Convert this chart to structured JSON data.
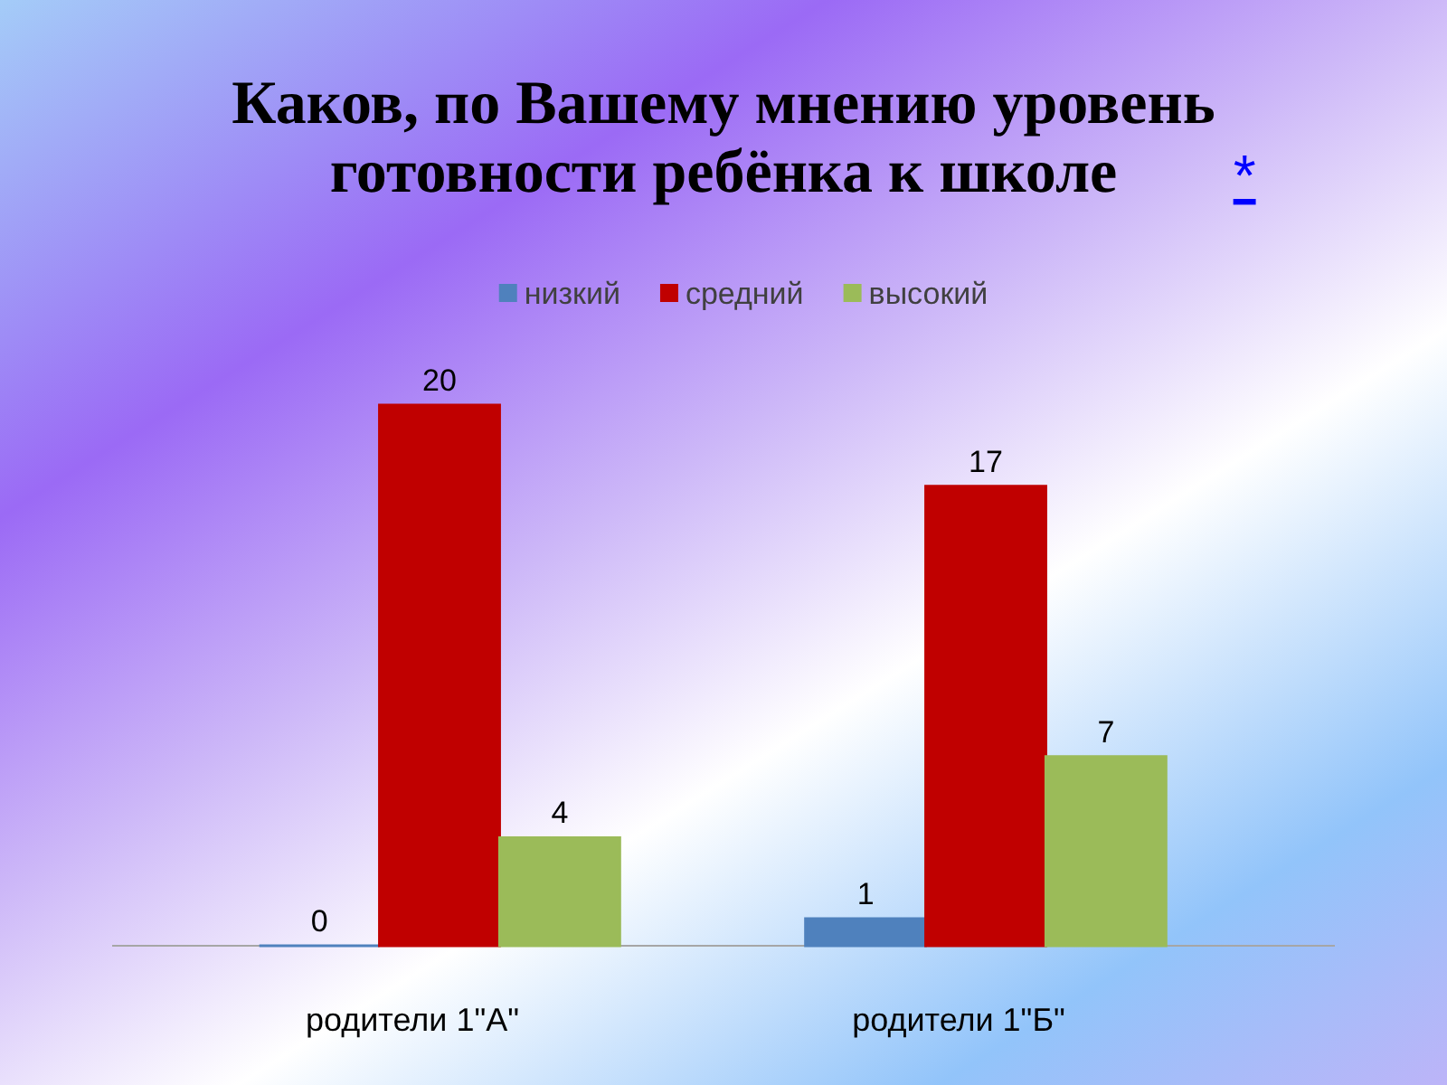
{
  "chart_data": {
    "type": "bar",
    "title": "Каков, по Вашему мнению уровень готовности ребёнка к школе",
    "annotations": [
      "*"
    ],
    "categories": [
      "родители 1\"А\"",
      "родители 1\"Б\""
    ],
    "series": [
      {
        "name": "низкий",
        "color": "#4f81bd",
        "values": [
          0,
          1
        ]
      },
      {
        "name": "средний",
        "color": "#c00000",
        "values": [
          20,
          17
        ]
      },
      {
        "name": "высокий",
        "color": "#9bbb59",
        "values": [
          4,
          7
        ]
      }
    ],
    "data_labels": true,
    "legend": "top"
  }
}
